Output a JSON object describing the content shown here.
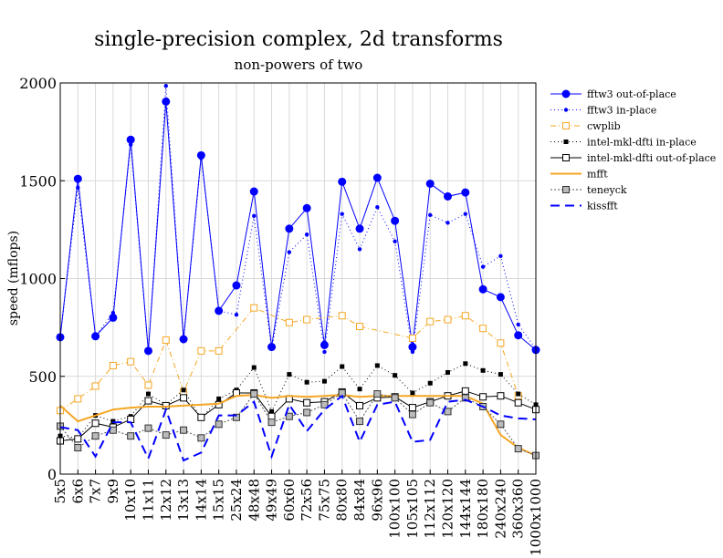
{
  "chart_data": {
    "type": "line",
    "title": "single-precision complex, 2d transforms",
    "subtitle": "non-powers of two",
    "xlabel": "",
    "ylabel": "speed (mflops)",
    "ylim": [
      0,
      2000
    ],
    "yticks": [
      0,
      500,
      1000,
      1500,
      2000
    ],
    "grid": true,
    "legend_position": "right",
    "categories": [
      "5x5",
      "6x6",
      "7x7",
      "9x9",
      "10x10",
      "11x11",
      "12x12",
      "13x13",
      "14x14",
      "15x15",
      "25x24",
      "48x48",
      "49x49",
      "60x60",
      "72x56",
      "75x75",
      "80x80",
      "84x84",
      "96x96",
      "100x100",
      "105x105",
      "112x112",
      "120x120",
      "144x144",
      "180x180",
      "240x240",
      "360x360",
      "1000x1000"
    ],
    "series": [
      {
        "name": "fftw3 out-of-place",
        "color": "#0000ff",
        "dash": "",
        "marker": "circle-filled",
        "values": [
          700,
          1510,
          705,
          800,
          1710,
          630,
          1905,
          690,
          1630,
          835,
          965,
          1445,
          650,
          1255,
          1360,
          660,
          1495,
          1255,
          1515,
          1295,
          650,
          1485,
          1420,
          1440,
          945,
          905,
          710,
          635
        ]
      },
      {
        "name": "fftw3 in-place",
        "color": "#0000ff",
        "dash": "1 3",
        "marker": "dot-small",
        "values": [
          700,
          1465,
          705,
          825,
          1685,
          625,
          1985,
          680,
          1615,
          835,
          815,
          1320,
          640,
          1135,
          1225,
          625,
          1330,
          1150,
          1365,
          1190,
          625,
          1325,
          1285,
          1330,
          1060,
          1115,
          765,
          640
        ]
      },
      {
        "name": "cwplib",
        "color": "#f5a623",
        "dash": "6 3 1 3",
        "marker": "square-open",
        "values": [
          325,
          385,
          450,
          555,
          575,
          455,
          685,
          420,
          630,
          630,
          null,
          850,
          null,
          775,
          790,
          null,
          810,
          755,
          null,
          null,
          695,
          780,
          790,
          810,
          745,
          670,
          400,
          null
        ]
      },
      {
        "name": "intel-mkl-dfti in-place",
        "color": "#000000",
        "dash": "1 3",
        "marker": "square-filled",
        "values": [
          195,
          185,
          300,
          270,
          295,
          410,
          355,
          430,
          285,
          385,
          430,
          545,
          320,
          510,
          470,
          475,
          550,
          435,
          555,
          505,
          415,
          465,
          520,
          565,
          530,
          510,
          410,
          355
        ]
      },
      {
        "name": "intel-mkl-dfti out-of-place",
        "color": "#000000",
        "dash": "",
        "marker": "square-open",
        "values": [
          170,
          180,
          260,
          240,
          280,
          375,
          350,
          390,
          290,
          355,
          415,
          415,
          295,
          385,
          365,
          370,
          420,
          350,
          390,
          395,
          340,
          370,
          400,
          425,
          395,
          400,
          365,
          330
        ]
      },
      {
        "name": "mfft",
        "color": "#f5a623",
        "dash": "",
        "marker": "",
        "values": [
          350,
          270,
          300,
          330,
          340,
          345,
          345,
          350,
          355,
          360,
          400,
          405,
          390,
          400,
          395,
          400,
          405,
          395,
          400,
          400,
          400,
          400,
          400,
          400,
          360,
          200,
          135,
          95
        ]
      },
      {
        "name": "teneyck",
        "color": "#555555",
        "dash": "2 2",
        "marker": "square-gray",
        "values": [
          245,
          135,
          195,
          225,
          195,
          235,
          200,
          225,
          185,
          255,
          290,
          410,
          265,
          295,
          315,
          355,
          415,
          270,
          410,
          390,
          305,
          365,
          320,
          390,
          345,
          255,
          130,
          95
        ]
      },
      {
        "name": "kissfft",
        "color": "#0000ff",
        "dash": "10 6",
        "marker": "",
        "values": [
          240,
          225,
          90,
          265,
          265,
          80,
          330,
          70,
          110,
          300,
          300,
          370,
          90,
          355,
          220,
          330,
          400,
          165,
          355,
          370,
          165,
          175,
          370,
          380,
          345,
          300,
          285,
          280
        ]
      }
    ]
  }
}
